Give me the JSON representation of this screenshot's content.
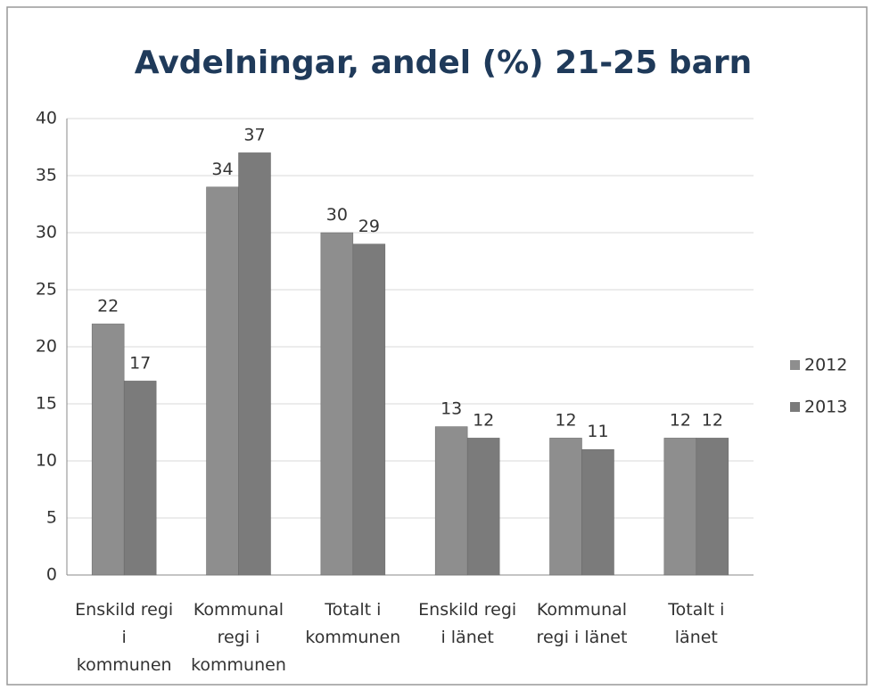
{
  "chart_data": {
    "type": "bar",
    "title": "Avdelningar, andel (%) 21-25 barn",
    "categories": [
      "Enskild regi\ni\nkommunen",
      "Kommunal\nregi i\nkommunen",
      "Totalt i\nkommunen",
      "Enskild regi\ni länet",
      "Kommunal\nregi i länet",
      "Totalt i\nlänet"
    ],
    "series": [
      {
        "name": "2012",
        "color": "#8e8e8e",
        "values": [
          22,
          34,
          30,
          13,
          12,
          12
        ]
      },
      {
        "name": "2013",
        "color": "#7b7b7b",
        "values": [
          17,
          37,
          29,
          12,
          11,
          12
        ]
      }
    ],
    "ylim": [
      0,
      40
    ],
    "yticks": [
      0,
      5,
      10,
      15,
      20,
      25,
      30,
      35,
      40
    ],
    "grid": true,
    "legend": "right"
  }
}
